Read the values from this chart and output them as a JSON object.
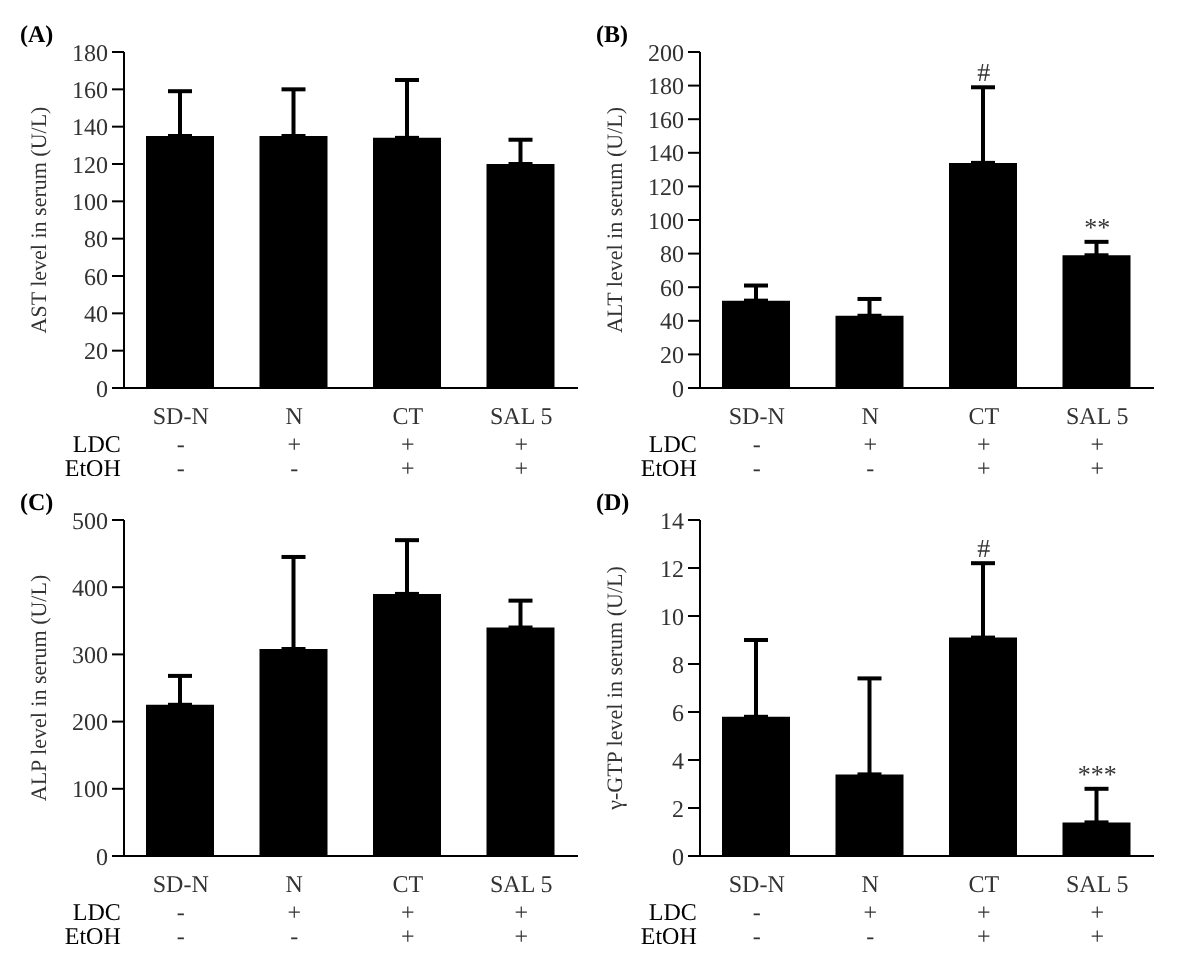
{
  "chart_data": [
    {
      "type": "bar",
      "title": "(A)",
      "ylabel": "AST level in serum (U/L)",
      "categories": [
        "SD-N",
        "N",
        "CT",
        "SAL 5"
      ],
      "values": [
        135,
        135,
        134,
        120
      ],
      "errors": [
        24,
        25,
        31,
        13
      ],
      "color": "#000000",
      "ylim": [
        0,
        180
      ],
      "yticks": [
        0,
        20,
        40,
        60,
        80,
        100,
        120,
        140,
        160,
        180
      ],
      "grid": false,
      "legend": false,
      "annotations": [
        "LDC",
        "-",
        "+",
        "+",
        "+",
        "EtOH",
        "-",
        "-",
        "+",
        "+"
      ]
    },
    {
      "type": "bar",
      "title": "(B)",
      "ylabel": "ALT level in serum (U/L)",
      "categories": [
        "SD-N",
        "N",
        "CT",
        "SAL 5"
      ],
      "values": [
        52,
        43,
        134,
        79
      ],
      "errors": [
        9,
        10,
        45,
        8
      ],
      "color": "#000000",
      "ylim": [
        0,
        200
      ],
      "yticks": [
        0,
        20,
        40,
        60,
        80,
        100,
        120,
        140,
        160,
        180,
        200
      ],
      "grid": false,
      "legend": false,
      "annotations": [
        "LDC",
        "-",
        "+",
        "+",
        "+",
        "EtOH",
        "-",
        "-",
        "+",
        "+",
        {
          "text": "#",
          "x": "CT",
          "y": 134
        },
        {
          "text": "**",
          "x": "SAL 5",
          "y": 79
        }
      ]
    },
    {
      "type": "bar",
      "title": "(C)",
      "ylabel": "ALP level in serum (U/L)",
      "categories": [
        "SD-N",
        "N",
        "CT",
        "SAL 5"
      ],
      "values": [
        225,
        308,
        390,
        340
      ],
      "errors": [
        43,
        137,
        80,
        40
      ],
      "color": "#000000",
      "ylim": [
        0,
        500
      ],
      "yticks": [
        0,
        100,
        200,
        300,
        400,
        500
      ],
      "grid": false,
      "legend": false,
      "annotations": [
        "LDC",
        "-",
        "+",
        "+",
        "+",
        "EtOH",
        "-",
        "-",
        "+",
        "+"
      ]
    },
    {
      "type": "bar",
      "title": "(D)",
      "ylabel": "γ-GTP level in serum (U/L)",
      "categories": [
        "SD-N",
        "N",
        "CT",
        "SAL 5"
      ],
      "values": [
        5.8,
        3.4,
        9.1,
        1.4
      ],
      "errors": [
        3.2,
        4.0,
        3.1,
        1.4
      ],
      "color": "#000000",
      "ylim": [
        0,
        14
      ],
      "yticks": [
        0,
        2,
        4,
        6,
        8,
        10,
        12,
        14
      ],
      "grid": false,
      "legend": false,
      "annotations": [
        "LDC",
        "-",
        "+",
        "+",
        "+",
        "EtOH",
        "-",
        "-",
        "+",
        "+",
        {
          "text": "#",
          "x": "CT",
          "y": 9.1
        },
        {
          "text": "***",
          "x": "SAL 5",
          "y": 1.4
        }
      ]
    }
  ]
}
